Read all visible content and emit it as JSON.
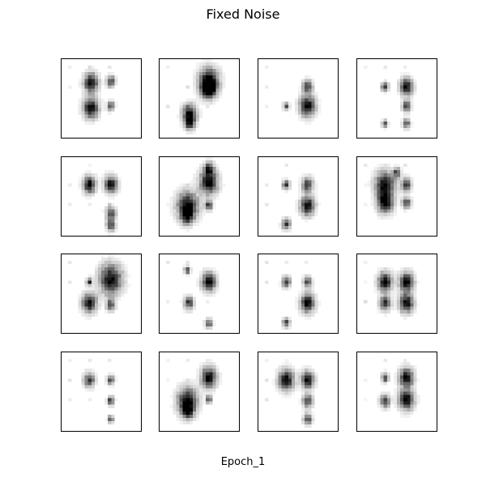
{
  "figure": {
    "title": "Fixed Noise",
    "xlabel": "Epoch_1"
  },
  "images": {
    "rows": 4,
    "cols": 4,
    "count": 16,
    "colormap": "gray_r",
    "tiles": [
      {
        "index": 0,
        "blobs": [
          [
            0.37,
            0.3,
            0.1
          ],
          [
            0.37,
            0.62,
            0.11
          ],
          [
            0.62,
            0.28,
            0.06
          ],
          [
            0.62,
            0.6,
            0.05
          ]
        ]
      },
      {
        "index": 1,
        "blobs": [
          [
            0.62,
            0.28,
            0.14
          ],
          [
            0.62,
            0.38,
            0.1
          ],
          [
            0.38,
            0.7,
            0.1
          ],
          [
            0.38,
            0.82,
            0.07
          ]
        ]
      },
      {
        "index": 2,
        "blobs": [
          [
            0.62,
            0.35,
            0.07
          ],
          [
            0.62,
            0.6,
            0.11
          ],
          [
            0.35,
            0.6,
            0.04
          ]
        ]
      },
      {
        "index": 3,
        "blobs": [
          [
            0.62,
            0.35,
            0.09
          ],
          [
            0.62,
            0.6,
            0.06
          ],
          [
            0.62,
            0.82,
            0.05
          ],
          [
            0.35,
            0.35,
            0.05
          ],
          [
            0.35,
            0.82,
            0.04
          ]
        ]
      },
      {
        "index": 4,
        "blobs": [
          [
            0.35,
            0.35,
            0.09
          ],
          [
            0.62,
            0.35,
            0.09
          ],
          [
            0.62,
            0.72,
            0.07
          ],
          [
            0.62,
            0.87,
            0.06
          ]
        ]
      },
      {
        "index": 5,
        "blobs": [
          [
            0.62,
            0.32,
            0.13
          ],
          [
            0.62,
            0.15,
            0.07
          ],
          [
            0.35,
            0.62,
            0.15
          ],
          [
            0.35,
            0.75,
            0.08
          ],
          [
            0.62,
            0.62,
            0.05
          ]
        ]
      },
      {
        "index": 6,
        "blobs": [
          [
            0.62,
            0.35,
            0.08
          ],
          [
            0.62,
            0.62,
            0.1
          ],
          [
            0.35,
            0.35,
            0.05
          ],
          [
            0.35,
            0.85,
            0.06
          ]
        ]
      },
      {
        "index": 7,
        "blobs": [
          [
            0.35,
            0.35,
            0.14
          ],
          [
            0.35,
            0.58,
            0.11
          ],
          [
            0.62,
            0.35,
            0.07
          ],
          [
            0.62,
            0.58,
            0.06
          ],
          [
            0.5,
            0.2,
            0.05
          ]
        ]
      },
      {
        "index": 8,
        "blobs": [
          [
            0.62,
            0.32,
            0.16
          ],
          [
            0.35,
            0.62,
            0.1
          ],
          [
            0.62,
            0.65,
            0.06
          ],
          [
            0.35,
            0.35,
            0.04
          ]
        ]
      },
      {
        "index": 9,
        "blobs": [
          [
            0.62,
            0.35,
            0.1
          ],
          [
            0.37,
            0.62,
            0.07
          ],
          [
            0.62,
            0.88,
            0.05
          ],
          [
            0.35,
            0.2,
            0.04
          ]
        ]
      },
      {
        "index": 10,
        "blobs": [
          [
            0.62,
            0.35,
            0.06
          ],
          [
            0.62,
            0.62,
            0.1
          ],
          [
            0.35,
            0.35,
            0.06
          ],
          [
            0.35,
            0.87,
            0.05
          ]
        ]
      },
      {
        "index": 11,
        "blobs": [
          [
            0.35,
            0.35,
            0.1
          ],
          [
            0.62,
            0.35,
            0.1
          ],
          [
            0.62,
            0.62,
            0.1
          ],
          [
            0.35,
            0.62,
            0.08
          ]
        ]
      },
      {
        "index": 12,
        "blobs": [
          [
            0.35,
            0.35,
            0.08
          ],
          [
            0.62,
            0.35,
            0.05
          ],
          [
            0.62,
            0.62,
            0.05
          ],
          [
            0.62,
            0.85,
            0.04
          ]
        ]
      },
      {
        "index": 13,
        "blobs": [
          [
            0.62,
            0.32,
            0.11
          ],
          [
            0.35,
            0.62,
            0.14
          ],
          [
            0.35,
            0.75,
            0.08
          ],
          [
            0.62,
            0.6,
            0.04
          ]
        ]
      },
      {
        "index": 14,
        "blobs": [
          [
            0.35,
            0.35,
            0.11
          ],
          [
            0.62,
            0.35,
            0.09
          ],
          [
            0.62,
            0.62,
            0.07
          ],
          [
            0.62,
            0.85,
            0.06
          ]
        ]
      },
      {
        "index": 15,
        "blobs": [
          [
            0.62,
            0.32,
            0.1
          ],
          [
            0.62,
            0.6,
            0.11
          ],
          [
            0.35,
            0.62,
            0.07
          ],
          [
            0.35,
            0.32,
            0.05
          ]
        ]
      }
    ]
  }
}
